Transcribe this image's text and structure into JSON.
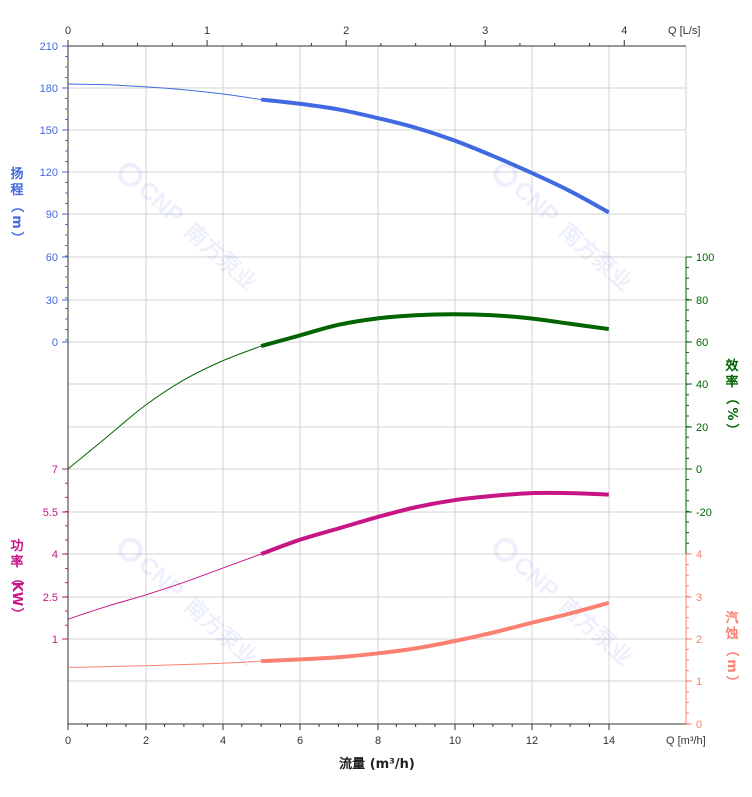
{
  "chart_data": {
    "type": "line",
    "x_bottom": {
      "label": "流量 (m³/h)",
      "unit_label": "Q [m³/h]",
      "range": [
        0,
        16
      ],
      "ticks": [
        "0",
        "2",
        "4",
        "6",
        "8",
        "10",
        "12",
        "14"
      ]
    },
    "x_top": {
      "unit_label": "Q [L/s]",
      "range": [
        0,
        4.444
      ],
      "ticks": [
        "0",
        "1",
        "2",
        "3",
        "4"
      ]
    },
    "axes": {
      "head": {
        "label_chars": [
          "扬",
          "程",
          "（",
          "m",
          "）"
        ],
        "color": "#4169E1",
        "ticks": [
          "210",
          "180",
          "150",
          "120",
          "90",
          "60",
          "30",
          "0"
        ],
        "range": [
          0,
          210
        ]
      },
      "efficiency": {
        "label_chars": [
          "效",
          "率",
          "（",
          "%",
          "）"
        ],
        "color": "#006400",
        "ticks": [
          "100",
          "80",
          "60",
          "40",
          "20",
          "0",
          "-20"
        ],
        "range": [
          -20,
          100
        ]
      },
      "power": {
        "label_chars": [
          "功",
          "率",
          "（",
          "KW",
          "）"
        ],
        "color": "#C71585",
        "ticks": [
          "7",
          "5.5",
          "4",
          "2.5",
          "1"
        ],
        "range": [
          1,
          7
        ]
      },
      "npsh": {
        "label_chars": [
          "汽",
          "蚀",
          "（",
          "m",
          "）"
        ],
        "color": "#FA8072",
        "ticks": [
          "4",
          "3",
          "2",
          "1",
          "0"
        ],
        "range": [
          0,
          4
        ]
      }
    },
    "watermark": {
      "mark": "CNP",
      "name": "南方泵业"
    },
    "series": [
      {
        "id": "head",
        "color": "#4169E1",
        "axis": "head",
        "operating_range": [
          5,
          14
        ],
        "points": [
          [
            0,
            183
          ],
          [
            1,
            182.5
          ],
          [
            2,
            181
          ],
          [
            3,
            179
          ],
          [
            4,
            176
          ],
          [
            5,
            172
          ],
          [
            6,
            169
          ],
          [
            7,
            165
          ],
          [
            8,
            159
          ],
          [
            9,
            152
          ],
          [
            10,
            143
          ],
          [
            11,
            132
          ],
          [
            12,
            120
          ],
          [
            13,
            107
          ],
          [
            14,
            92
          ]
        ]
      },
      {
        "id": "efficiency",
        "color": "#006400",
        "axis": "efficiency",
        "operating_range": [
          5,
          14
        ],
        "points": [
          [
            0,
            0
          ],
          [
            1,
            15
          ],
          [
            2,
            30
          ],
          [
            3,
            42
          ],
          [
            4,
            51
          ],
          [
            5,
            58
          ],
          [
            6,
            63
          ],
          [
            7,
            68
          ],
          [
            8,
            71
          ],
          [
            9,
            72.5
          ],
          [
            10,
            73
          ],
          [
            11,
            72.5
          ],
          [
            12,
            71
          ],
          [
            13,
            68.5
          ],
          [
            14,
            66
          ]
        ]
      },
      {
        "id": "power",
        "color": "#C71585",
        "axis": "power",
        "operating_range": [
          5,
          14
        ],
        "points": [
          [
            0,
            1.7
          ],
          [
            1,
            2.15
          ],
          [
            2,
            2.55
          ],
          [
            3,
            3.0
          ],
          [
            4,
            3.5
          ],
          [
            5,
            4.0
          ],
          [
            6,
            4.5
          ],
          [
            7,
            4.9
          ],
          [
            8,
            5.3
          ],
          [
            9,
            5.65
          ],
          [
            10,
            5.9
          ],
          [
            11,
            6.05
          ],
          [
            12,
            6.15
          ],
          [
            13,
            6.15
          ],
          [
            14,
            6.1
          ]
        ]
      },
      {
        "id": "npsh",
        "color": "#FA8072",
        "axis": "npsh",
        "operating_range": [
          5,
          14
        ],
        "points": [
          [
            0,
            1.33
          ],
          [
            1,
            1.35
          ],
          [
            2,
            1.37
          ],
          [
            3,
            1.4
          ],
          [
            4,
            1.43
          ],
          [
            5,
            1.48
          ],
          [
            6,
            1.52
          ],
          [
            7,
            1.57
          ],
          [
            8,
            1.66
          ],
          [
            9,
            1.78
          ],
          [
            10,
            1.95
          ],
          [
            11,
            2.15
          ],
          [
            12,
            2.38
          ],
          [
            13,
            2.6
          ],
          [
            14,
            2.85
          ]
        ]
      }
    ]
  }
}
